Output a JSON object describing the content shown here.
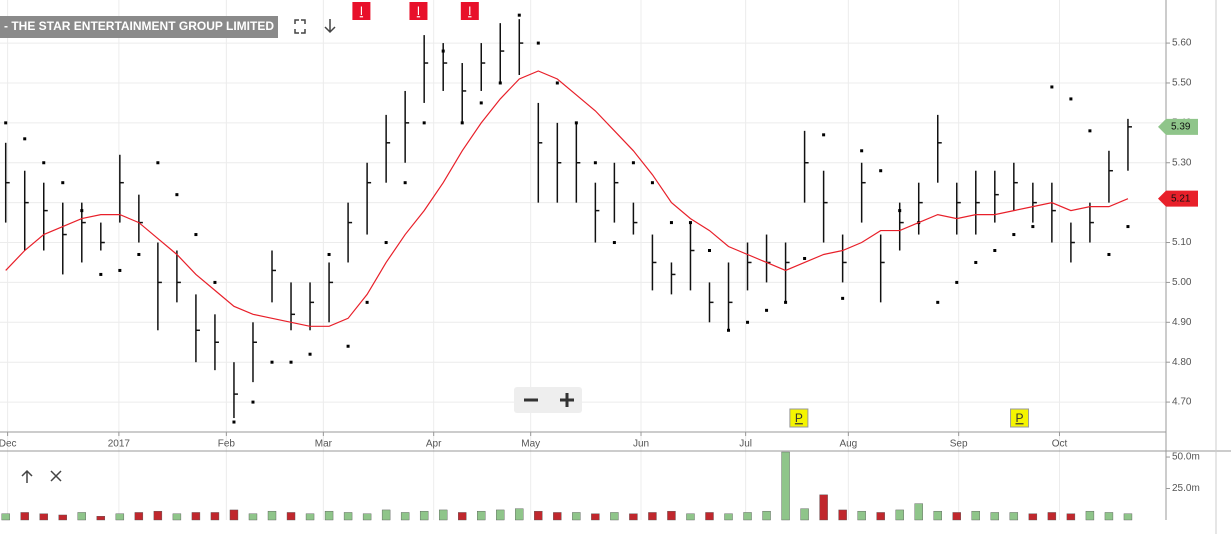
{
  "chart_data": {
    "type": "ohlc",
    "title": "- THE STAR ENTERTAINMENT GROUP LIMITED",
    "x": [
      0,
      1,
      2,
      3,
      4,
      5,
      6,
      7,
      8,
      9,
      10,
      11,
      12,
      13,
      14,
      15,
      16,
      17,
      18,
      19,
      20,
      21,
      22,
      23,
      24,
      25,
      26,
      27,
      28,
      29,
      30,
      31,
      32,
      33,
      34,
      35,
      36,
      37,
      38,
      39,
      40,
      41,
      42,
      43,
      44,
      45,
      46,
      47,
      48,
      49,
      50,
      51,
      52,
      53,
      54,
      55,
      56,
      57,
      58,
      59
    ],
    "high": [
      5.35,
      5.28,
      5.25,
      5.2,
      5.2,
      5.15,
      5.32,
      5.22,
      5.1,
      5.08,
      4.97,
      4.92,
      4.8,
      4.9,
      5.08,
      5.0,
      5.0,
      5.05,
      5.2,
      5.3,
      5.42,
      5.48,
      5.62,
      5.6,
      5.55,
      5.6,
      5.65,
      5.66,
      5.45,
      5.4,
      5.4,
      5.25,
      5.3,
      5.2,
      5.12,
      5.05,
      5.15,
      5.0,
      5.05,
      5.1,
      5.12,
      5.1,
      5.38,
      5.28,
      5.12,
      5.3,
      5.12,
      5.2,
      5.25,
      5.42,
      5.25,
      5.28,
      5.28,
      5.3,
      5.25,
      5.25,
      5.15,
      5.2,
      5.33,
      5.41
    ],
    "low": [
      5.15,
      5.08,
      5.08,
      5.02,
      5.05,
      5.08,
      5.15,
      5.1,
      4.88,
      4.95,
      4.8,
      4.78,
      4.66,
      4.75,
      4.95,
      4.88,
      4.88,
      4.9,
      5.05,
      5.12,
      5.25,
      5.3,
      5.45,
      5.48,
      5.4,
      5.48,
      5.5,
      5.52,
      5.2,
      5.2,
      5.2,
      5.1,
      5.15,
      5.12,
      4.98,
      4.97,
      4.98,
      4.9,
      4.88,
      4.98,
      5.0,
      4.95,
      5.2,
      5.1,
      5.0,
      5.15,
      4.95,
      5.08,
      5.12,
      5.25,
      5.12,
      5.12,
      5.15,
      5.18,
      5.15,
      5.1,
      5.05,
      5.1,
      5.2,
      5.28
    ],
    "close": [
      5.25,
      5.2,
      5.18,
      5.12,
      5.15,
      5.1,
      5.25,
      5.15,
      5.0,
      5.0,
      4.88,
      4.85,
      4.72,
      4.85,
      5.03,
      4.92,
      4.95,
      5.0,
      5.15,
      5.25,
      5.35,
      5.4,
      5.55,
      5.55,
      5.48,
      5.55,
      5.58,
      5.6,
      5.35,
      5.3,
      5.3,
      5.18,
      5.25,
      5.15,
      5.05,
      5.02,
      5.08,
      4.95,
      4.95,
      5.05,
      5.05,
      5.05,
      5.3,
      5.2,
      5.05,
      5.25,
      5.05,
      5.15,
      5.2,
      5.35,
      5.2,
      5.2,
      5.22,
      5.25,
      5.2,
      5.18,
      5.1,
      5.15,
      5.28,
      5.39
    ],
    "moving_average": [
      5.03,
      5.08,
      5.12,
      5.14,
      5.16,
      5.17,
      5.17,
      5.15,
      5.11,
      5.07,
      5.02,
      4.98,
      4.94,
      4.92,
      4.91,
      4.9,
      4.89,
      4.89,
      4.91,
      4.97,
      5.05,
      5.12,
      5.18,
      5.25,
      5.33,
      5.4,
      5.46,
      5.51,
      5.53,
      5.51,
      5.47,
      5.43,
      5.38,
      5.33,
      5.27,
      5.2,
      5.16,
      5.13,
      5.09,
      5.07,
      5.05,
      5.03,
      5.05,
      5.07,
      5.08,
      5.1,
      5.13,
      5.13,
      5.15,
      5.17,
      5.16,
      5.17,
      5.17,
      5.18,
      5.19,
      5.2,
      5.18,
      5.19,
      5.19,
      5.21
    ],
    "ma_color": "#e8202a",
    "sar": [
      5.4,
      5.36,
      5.3,
      5.25,
      5.18,
      5.02,
      5.03,
      5.07,
      5.3,
      5.22,
      5.12,
      5.0,
      4.65,
      4.7,
      4.8,
      4.8,
      4.82,
      5.07,
      4.84,
      4.95,
      5.1,
      5.25,
      5.4,
      5.58,
      5.4,
      5.45,
      5.5,
      5.67,
      5.6,
      5.5,
      5.4,
      5.3,
      5.1,
      5.3,
      5.25,
      5.15,
      5.15,
      5.08,
      4.88,
      4.9,
      4.93,
      4.95,
      5.06,
      5.37,
      4.96,
      5.33,
      5.28,
      5.18,
      5.15,
      4.95,
      5.0,
      5.05,
      5.08,
      5.12,
      5.14,
      5.49,
      5.46,
      5.38,
      5.07,
      5.14
    ],
    "xlim": [
      -0.3,
      61
    ],
    "xticks": [
      {
        "value": 0.1,
        "label": "Dec"
      },
      {
        "value": 5.95,
        "label": "2017"
      },
      {
        "value": 11.6,
        "label": "Feb"
      },
      {
        "value": 16.7,
        "label": "Mar"
      },
      {
        "value": 22.5,
        "label": "Apr"
      },
      {
        "value": 27.6,
        "label": "May"
      },
      {
        "value": 33.4,
        "label": "Jun"
      },
      {
        "value": 38.9,
        "label": "Jul"
      },
      {
        "value": 44.3,
        "label": "Aug"
      },
      {
        "value": 50.1,
        "label": "Sep"
      },
      {
        "value": 55.4,
        "label": "Oct"
      }
    ],
    "ylim": [
      4.625,
      5.708
    ],
    "yticks": [
      {
        "value": 4.7,
        "label": "4.70"
      },
      {
        "value": 4.8,
        "label": "4.80"
      },
      {
        "value": 4.9,
        "label": "4.90"
      },
      {
        "value": 5.0,
        "label": "5.00"
      },
      {
        "value": 5.1,
        "label": "5.10"
      },
      {
        "value": 5.2,
        "label": "5.20"
      },
      {
        "value": 5.3,
        "label": "5.30"
      },
      {
        "value": 5.4,
        "label": "5.40"
      },
      {
        "value": 5.5,
        "label": "5.50"
      },
      {
        "value": 5.6,
        "label": "5.60"
      }
    ],
    "grid": true,
    "events": [
      {
        "label": "I",
        "x": 18.7,
        "color": "#e8102a"
      },
      {
        "label": "I",
        "x": 21.7,
        "color": "#e8102a"
      },
      {
        "label": "I",
        "x": 24.4,
        "color": "#e8102a"
      },
      {
        "label": "P",
        "x": 41.7,
        "color": "#f5f500"
      },
      {
        "label": "P",
        "x": 53.3,
        "color": "#f5f500"
      }
    ],
    "volume": {
      "values": [
        5,
        6,
        5,
        4,
        6,
        3,
        5,
        6,
        7,
        5,
        6,
        6,
        8,
        5,
        7,
        6,
        5,
        7,
        6,
        5,
        8,
        6,
        7,
        8,
        6,
        7,
        8,
        9,
        7,
        6,
        6,
        5,
        6,
        5,
        6,
        7,
        5,
        6,
        5,
        6,
        7,
        54,
        9,
        20,
        8,
        7,
        6,
        8,
        13,
        7,
        6,
        7,
        6,
        6,
        5,
        6,
        5,
        7,
        6,
        5
      ],
      "up_color": "#8fc58a",
      "down_color": "#c0272d",
      "ylim": [
        0,
        54
      ],
      "yticks": [
        {
          "value": 25,
          "label": "25.0m"
        },
        {
          "value": 50,
          "label": "50.0m"
        }
      ]
    }
  }
}
